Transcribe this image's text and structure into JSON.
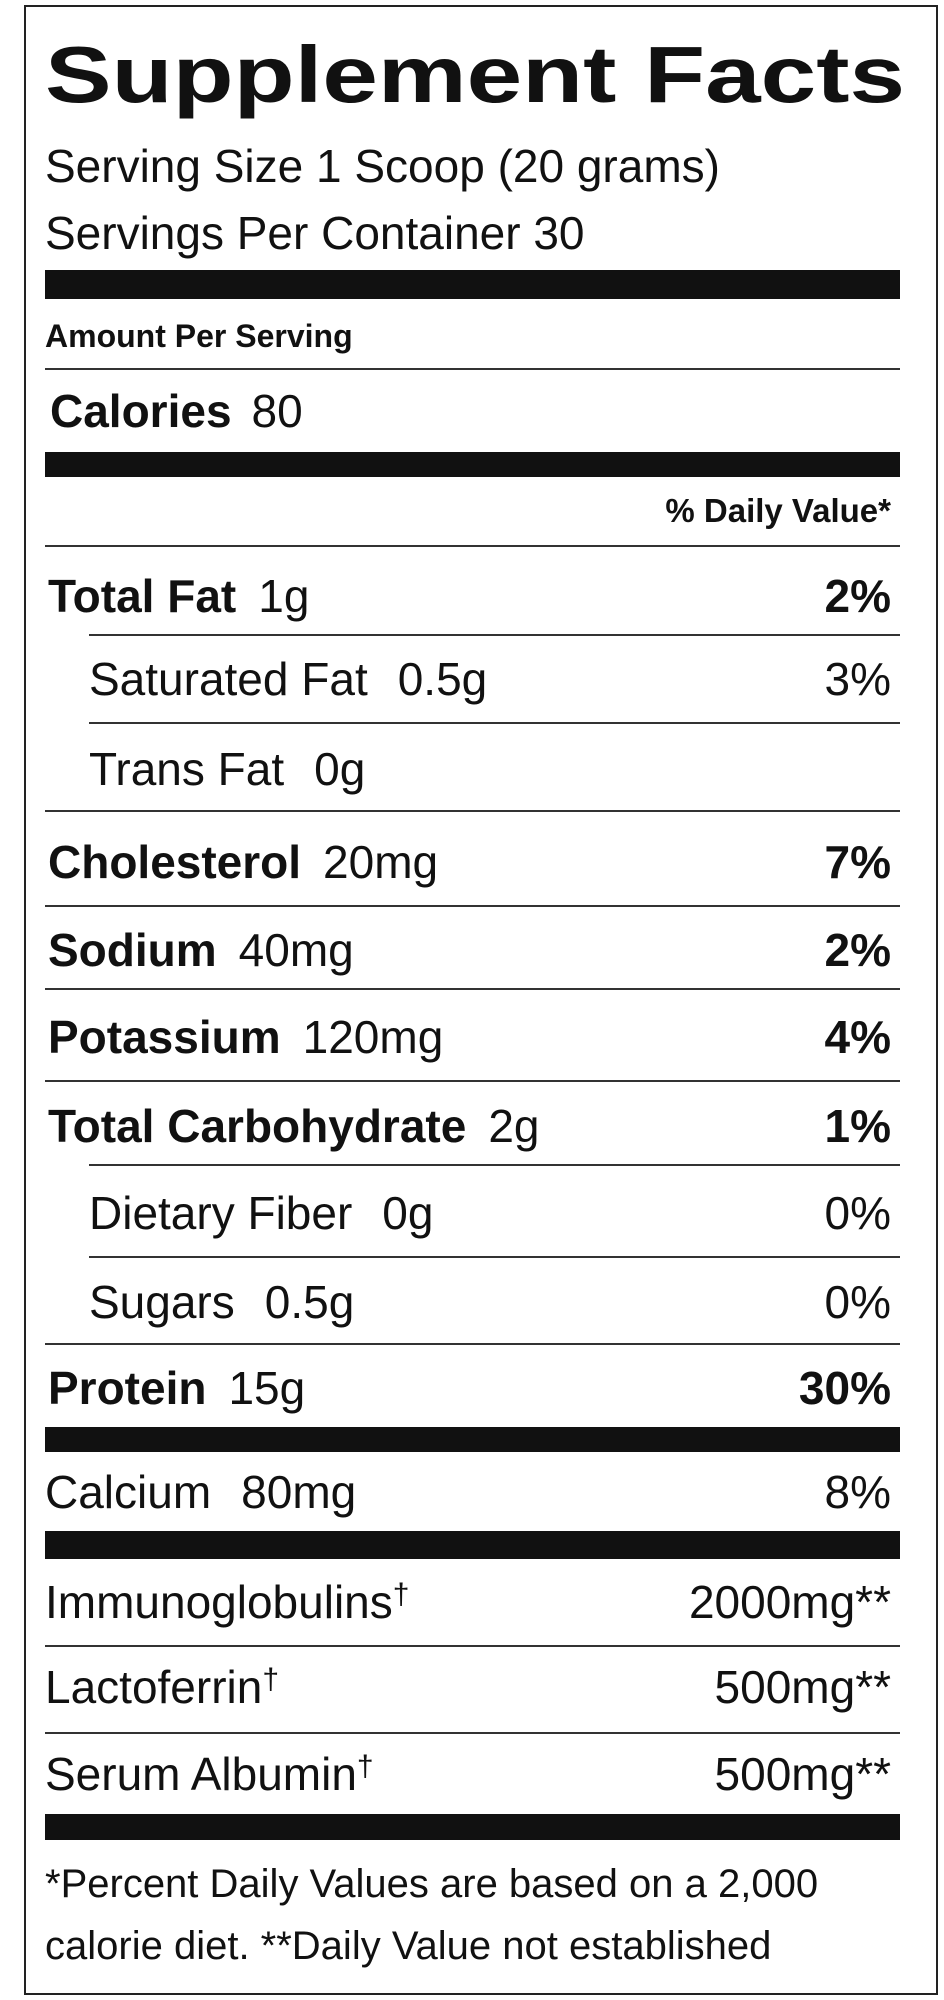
{
  "header": {
    "title": "Supplement Facts",
    "serving_size": "Serving Size 1 Scoop (20 grams)",
    "servings_per_container": "Servings Per Container 30"
  },
  "amount_per_serving": "Amount Per Serving",
  "calories": {
    "label": "Calories",
    "amount": "80"
  },
  "daily_value_header": "% Daily Value*",
  "nutrients": [
    {
      "name": "Total Fat",
      "amount": "1g",
      "dv": "2%",
      "level": "main"
    },
    {
      "name": "Saturated Fat",
      "amount": "0.5g",
      "dv": "3%",
      "level": "sub"
    },
    {
      "name": "Trans Fat",
      "amount": "0g",
      "level": "sub"
    },
    {
      "name": "Cholesterol",
      "amount": "20mg",
      "dv": "7%",
      "level": "main"
    },
    {
      "name": "Sodium",
      "amount": "40mg",
      "dv": "2%",
      "level": "main"
    },
    {
      "name": "Potassium",
      "amount": "120mg",
      "dv": "4%",
      "level": "main"
    },
    {
      "name": "Total Carbohydrate",
      "amount": "2g",
      "dv": "1%",
      "level": "main"
    },
    {
      "name": "Dietary Fiber",
      "amount": "0g",
      "dv": "0%",
      "level": "sub"
    },
    {
      "name": "Sugars",
      "amount": "0.5g",
      "dv": "0%",
      "level": "sub"
    },
    {
      "name": "Protein",
      "amount": "15g",
      "dv": "30%",
      "level": "main"
    }
  ],
  "calcium": {
    "name": "Calcium",
    "amount": "80mg",
    "dv": "8%"
  },
  "other_ingredients": [
    {
      "name": "Immunoglobulins",
      "mark": "†",
      "amount": "2000mg**"
    },
    {
      "name": "Lactoferrin",
      "mark": "†",
      "amount": "500mg**"
    },
    {
      "name": "Serum Albumin",
      "mark": "†",
      "amount": "500mg**"
    }
  ],
  "footnote": [
    "*Percent Daily Values are based on a 2,000",
    "calorie diet. **Daily Value not established"
  ]
}
